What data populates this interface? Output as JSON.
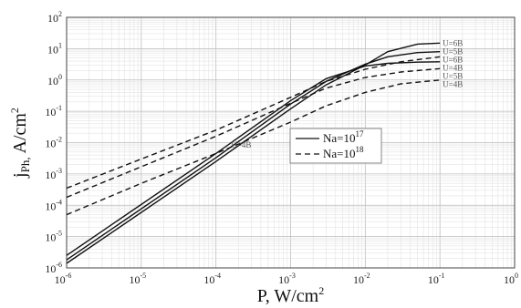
{
  "chart_data": {
    "type": "line",
    "title": "",
    "xlabel": "P, W/cm",
    "xlabel_sup": "2",
    "ylabel_main": "j",
    "ylabel_sub": "Ph,",
    "ylabel_tail": " A/cm",
    "ylabel_sup": "2",
    "x_scale": "log",
    "y_scale": "log",
    "xlim": [
      1e-06,
      1
    ],
    "ylim": [
      1e-06,
      100
    ],
    "grid": true,
    "x_ticks": [
      {
        "base": "10",
        "exp": "-6"
      },
      {
        "base": "10",
        "exp": "-5"
      },
      {
        "base": "10",
        "exp": "-4"
      },
      {
        "base": "10",
        "exp": "-3"
      },
      {
        "base": "10",
        "exp": "-2"
      },
      {
        "base": "10",
        "exp": "-1"
      },
      {
        "base": "10",
        "exp": "0"
      }
    ],
    "y_ticks": [
      {
        "base": "10",
        "exp": "2"
      },
      {
        "base": "10",
        "exp": "1"
      },
      {
        "base": "10",
        "exp": "0"
      },
      {
        "base": "10",
        "exp": "-1"
      },
      {
        "base": "10",
        "exp": "-2"
      },
      {
        "base": "10",
        "exp": "-3"
      },
      {
        "base": "10",
        "exp": "-4"
      },
      {
        "base": "10",
        "exp": "-5"
      },
      {
        "base": "10",
        "exp": "-6"
      }
    ],
    "legend": {
      "placement": "center",
      "entries": [
        {
          "style": "solid",
          "text": "Na=10",
          "sup": "17"
        },
        {
          "style": "dashed",
          "text": "Na=10",
          "sup": "18"
        }
      ]
    },
    "series": [
      {
        "dash": "solid",
        "label": "U=6B",
        "x": [
          1e-06,
          0.0001,
          0.001,
          0.003,
          0.01,
          0.02,
          0.05,
          0.1
        ],
        "y": [
          1.4e-06,
          0.0025,
          0.12,
          0.7,
          3,
          8,
          14,
          15
        ]
      },
      {
        "dash": "solid",
        "label": "U=5B",
        "x": [
          1e-06,
          0.0001,
          0.001,
          0.003,
          0.01,
          0.02,
          0.05,
          0.1
        ],
        "y": [
          1.8e-06,
          0.0033,
          0.17,
          0.9,
          3.2,
          5.5,
          7.5,
          8
        ]
      },
      {
        "dash": "solid",
        "label": "U=4B",
        "x": [
          1e-06,
          0.0001,
          0.001,
          0.003,
          0.01,
          0.02,
          0.05,
          0.1
        ],
        "y": [
          2.5e-06,
          0.0045,
          0.22,
          1.1,
          2.8,
          3.4,
          3.7,
          3.8
        ]
      },
      {
        "dash": "dashed",
        "label": "U=6B",
        "x": [
          1e-06,
          1e-05,
          0.0001,
          0.001,
          0.003,
          0.01,
          0.03,
          0.1
        ],
        "y": [
          0.00035,
          0.003,
          0.025,
          0.28,
          0.9,
          2.2,
          3.8,
          5.5
        ]
      },
      {
        "dash": "dashed",
        "label": "U=5B",
        "x": [
          1e-06,
          1e-05,
          0.0001,
          0.001,
          0.003,
          0.01,
          0.03,
          0.1
        ],
        "y": [
          0.00018,
          0.0017,
          0.016,
          0.18,
          0.55,
          1.2,
          1.8,
          2.3
        ]
      },
      {
        "dash": "dashed",
        "label": "U=4B",
        "x": [
          1e-06,
          1e-05,
          0.0001,
          0.001,
          0.003,
          0.01,
          0.03,
          0.1
        ],
        "y": [
          5e-05,
          0.0005,
          0.0045,
          0.045,
          0.15,
          0.4,
          0.75,
          1.0
        ]
      }
    ],
    "annotations": [
      {
        "text": "U=4B",
        "x": 0.00016,
        "y": 0.007
      }
    ],
    "colors": {
      "line": "#111111",
      "grid_major": "#bcbcbc",
      "grid_minor": "#e3e3e3",
      "label": "#555555"
    }
  }
}
